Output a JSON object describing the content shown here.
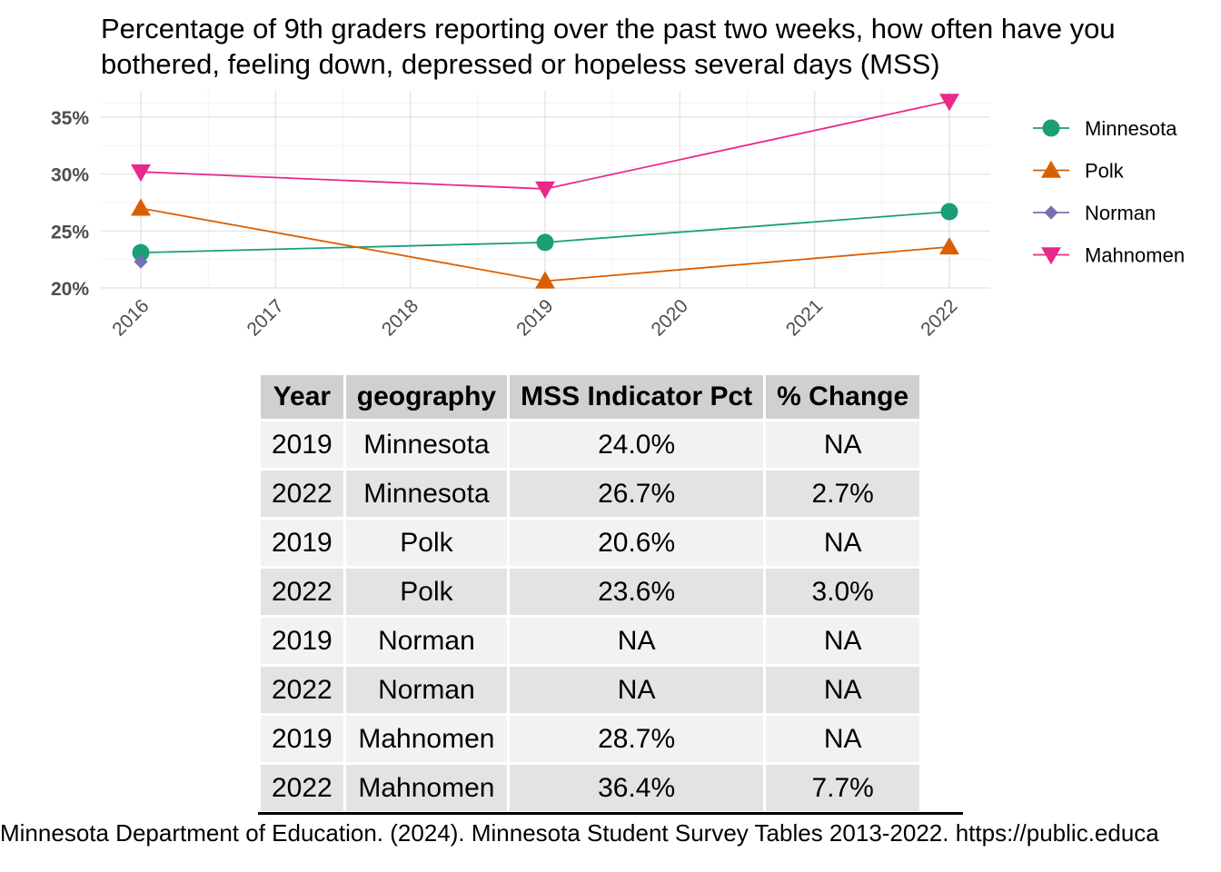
{
  "chart_data": {
    "type": "line",
    "title_lines": [
      "Percentage of 9th graders reporting over the past two weeks, how often have you",
      "bothered, feeling down, depressed or hopeless several days (MSS)"
    ],
    "xlabel": "",
    "ylabel": "",
    "x_ticks": [
      "2016",
      "2017",
      "2018",
      "2019",
      "2020",
      "2021",
      "2022"
    ],
    "xlim": [
      2016,
      2022
    ],
    "y_ticks": [
      "20%",
      "25%",
      "30%",
      "35%"
    ],
    "ylim": [
      20,
      36.4
    ],
    "grid": true,
    "legend_position": "right",
    "series": [
      {
        "name": "Minnesota",
        "color": "#1b9e77",
        "marker": "circle",
        "points": [
          {
            "x": 2016,
            "y": 23.1
          },
          {
            "x": 2019,
            "y": 24.0
          },
          {
            "x": 2022,
            "y": 26.7
          }
        ]
      },
      {
        "name": "Polk",
        "color": "#d95f02",
        "marker": "triangle-up",
        "points": [
          {
            "x": 2016,
            "y": 27.0
          },
          {
            "x": 2019,
            "y": 20.6
          },
          {
            "x": 2022,
            "y": 23.6
          }
        ]
      },
      {
        "name": "Norman",
        "color": "#7570b3",
        "marker": "diamond",
        "points": [
          {
            "x": 2016,
            "y": 22.3
          }
        ]
      },
      {
        "name": "Mahnomen",
        "color": "#e7298a",
        "marker": "triangle-down",
        "points": [
          {
            "x": 2016,
            "y": 30.2
          },
          {
            "x": 2019,
            "y": 28.7
          },
          {
            "x": 2022,
            "y": 36.4
          }
        ]
      }
    ]
  },
  "table": {
    "headers": [
      "Year",
      "geography",
      "MSS Indicator Pct",
      "% Change"
    ],
    "rows": [
      [
        "2019",
        "Minnesota",
        "24.0%",
        "NA"
      ],
      [
        "2022",
        "Minnesota",
        "26.7%",
        "2.7%"
      ],
      [
        "2019",
        "Polk",
        "20.6%",
        "NA"
      ],
      [
        "2022",
        "Polk",
        "23.6%",
        "3.0%"
      ],
      [
        "2019",
        "Norman",
        "NA",
        "NA"
      ],
      [
        "2022",
        "Norman",
        "NA",
        "NA"
      ],
      [
        "2019",
        "Mahnomen",
        "28.7%",
        "NA"
      ],
      [
        "2022",
        "Mahnomen",
        "36.4%",
        "7.7%"
      ]
    ]
  },
  "caption": "Minnesota Department of Education. (2024). Minnesota Student Survey Tables 2013-2022. https://public.educa"
}
